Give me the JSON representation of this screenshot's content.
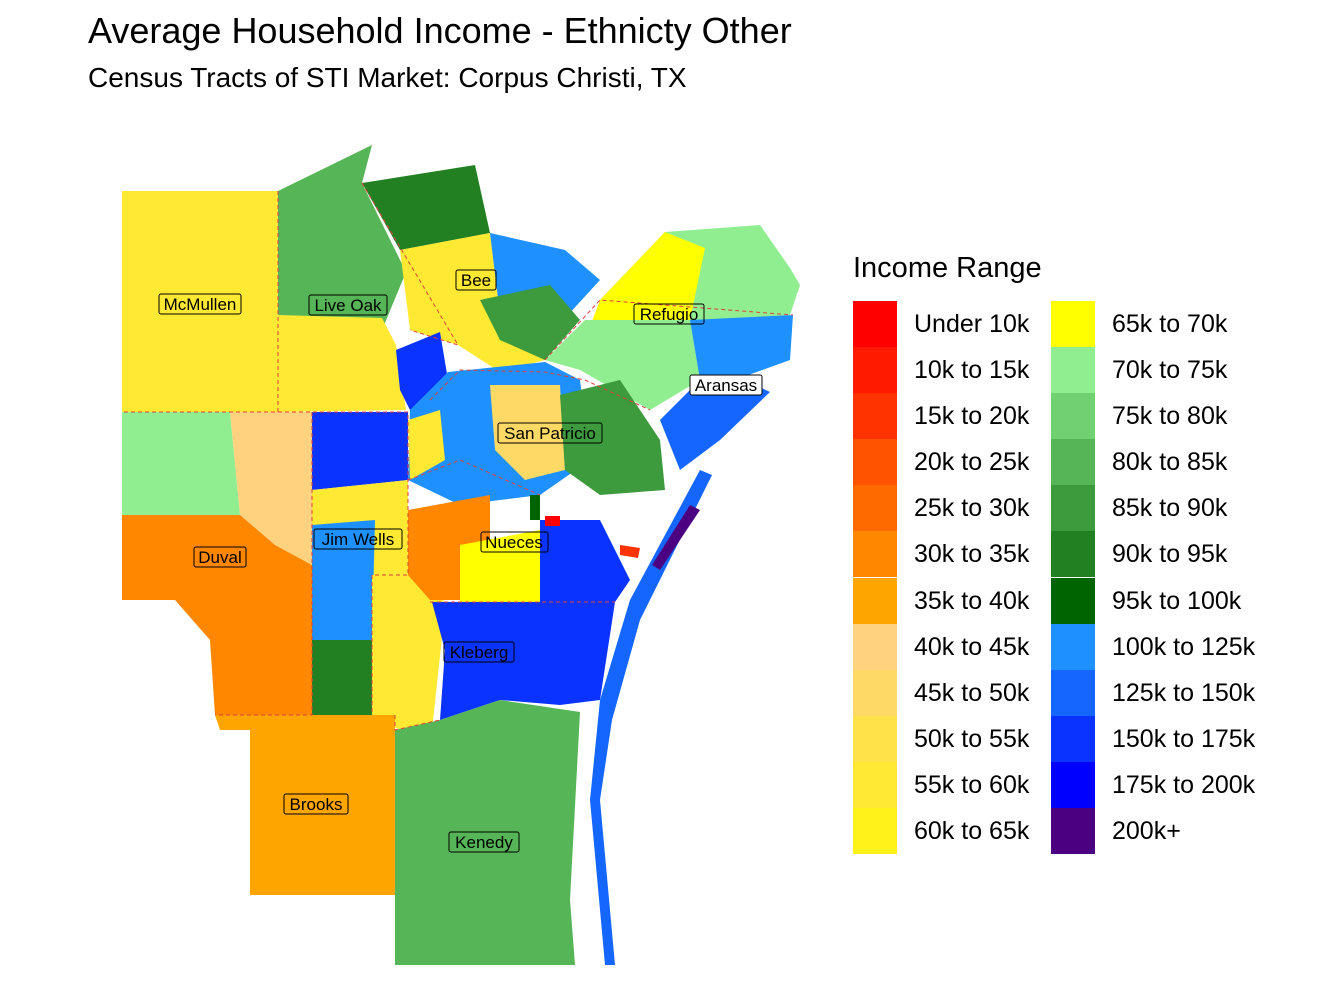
{
  "title": "Average Household Income - Ethnicty Other",
  "subtitle": "Census Tracts of STI Market: Corpus Christi, TX",
  "legend": {
    "title": "Income Range",
    "items": [
      {
        "label": "Under 10k",
        "color": "#ff0000"
      },
      {
        "label": "10k to 15k",
        "color": "#ff1a00"
      },
      {
        "label": "15k to 20k",
        "color": "#ff3300"
      },
      {
        "label": "20k to 25k",
        "color": "#ff5300"
      },
      {
        "label": "25k to 30k",
        "color": "#ff6a00"
      },
      {
        "label": "30k to 35k",
        "color": "#ff8700"
      },
      {
        "label": "35k to 40k",
        "color": "#ffa500"
      },
      {
        "label": "40k to 45k",
        "color": "#ffd27f"
      },
      {
        "label": "45k to 50k",
        "color": "#ffd966"
      },
      {
        "label": "50k to 55k",
        "color": "#ffe14a"
      },
      {
        "label": "55k to 60k",
        "color": "#ffe933"
      },
      {
        "label": "60k to 65k",
        "color": "#fff21a"
      },
      {
        "label": "65k to 70k",
        "color": "#ffff00"
      },
      {
        "label": "70k to 75k",
        "color": "#90ee90"
      },
      {
        "label": "75k to 80k",
        "color": "#6fd16f"
      },
      {
        "label": "80k to 85k",
        "color": "#56b556"
      },
      {
        "label": "85k to 90k",
        "color": "#3d9a3d"
      },
      {
        "label": "90k to 95k",
        "color": "#228022"
      },
      {
        "label": "95k to 100k",
        "color": "#006400"
      },
      {
        "label": "100k to 125k",
        "color": "#1e90ff"
      },
      {
        "label": "125k to 150k",
        "color": "#1566ff"
      },
      {
        "label": "150k to 175k",
        "color": "#0a33ff"
      },
      {
        "label": "175k to 200k",
        "color": "#0000ff"
      },
      {
        "label": "200k+",
        "color": "#4b0082"
      }
    ]
  },
  "counties": {
    "mcmullen": "McMullen",
    "live_oak": "Live Oak",
    "bee": "Bee",
    "refugio": "Refugio",
    "aransas": "Aransas",
    "san_patricio": "San Patricio",
    "duval": "Duval",
    "jim_wells": "Jim Wells",
    "nueces": "Nueces",
    "kleberg": "Kleberg",
    "brooks": "Brooks",
    "kenedy": "Kenedy"
  }
}
